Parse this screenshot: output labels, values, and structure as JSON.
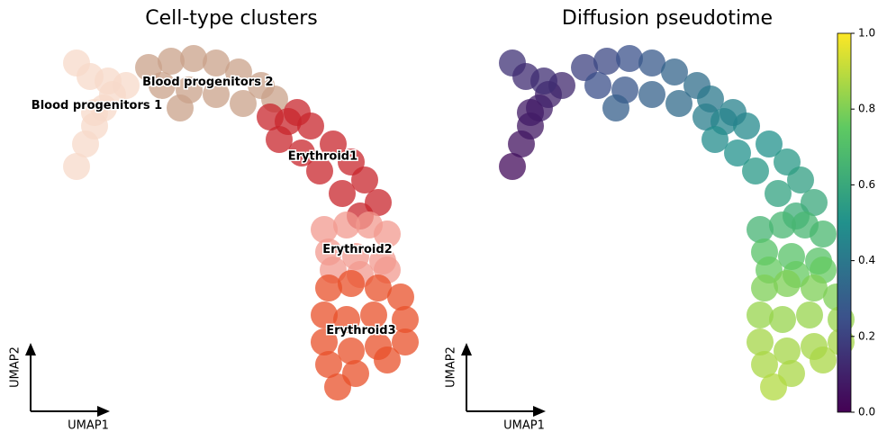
{
  "chart_data": [
    {
      "type": "scatter",
      "title": "Cell-type clusters",
      "xlabel": "UMAP1",
      "ylabel": "UMAP2",
      "xlim": [
        0,
        440
      ],
      "ylim": [
        0,
        390
      ],
      "series": [
        {
          "name": "Blood progenitors 1",
          "color": "#f7d9c9",
          "x": [
            55,
            65,
            75,
            85,
            95,
            110,
            55,
            70,
            90,
            75
          ],
          "y": [
            255,
            280,
            300,
            320,
            335,
            345,
            370,
            355,
            350,
            315
          ]
        },
        {
          "name": "Blood progenitors 2",
          "color": "#c9a28a",
          "x": [
            135,
            160,
            185,
            210,
            235,
            260,
            275,
            150,
            180,
            210,
            240,
            170
          ],
          "y": [
            365,
            372,
            375,
            370,
            360,
            345,
            330,
            345,
            340,
            335,
            325,
            320
          ]
        },
        {
          "name": "Erythroid1",
          "color": "#c8262c",
          "x": [
            270,
            290,
            315,
            340,
            360,
            375,
            390,
            280,
            305,
            325,
            350,
            370,
            300
          ],
          "y": [
            310,
            305,
            300,
            280,
            260,
            240,
            215,
            285,
            270,
            250,
            225,
            200,
            315
          ]
        },
        {
          "name": "Erythroid2",
          "color": "#f19a8f",
          "x": [
            330,
            355,
            380,
            400,
            335,
            365,
            395,
            340,
            370,
            400
          ],
          "y": [
            185,
            190,
            190,
            180,
            160,
            155,
            150,
            140,
            135,
            140
          ]
        },
        {
          "name": "Erythroid3",
          "color": "#e8502a",
          "x": [
            335,
            360,
            390,
            415,
            330,
            355,
            385,
            420,
            330,
            360,
            390,
            420,
            335,
            365,
            400,
            345
          ],
          "y": [
            120,
            125,
            120,
            110,
            90,
            85,
            90,
            85,
            60,
            50,
            55,
            60,
            35,
            25,
            40,
            10
          ]
        }
      ]
    },
    {
      "type": "scatter",
      "title": "Diffusion pseudotime",
      "xlabel": "UMAP1",
      "ylabel": "UMAP2",
      "xlim": [
        0,
        440
      ],
      "ylim": [
        0,
        390
      ],
      "colormap": "viridis",
      "clim": [
        0,
        1
      ],
      "cticks": [
        {
          "value": 0,
          "label": "0.0"
        },
        {
          "value": 0.2,
          "label": "0.2"
        },
        {
          "value": 0.4,
          "label": "0.4"
        },
        {
          "value": 0.6,
          "label": "0.6"
        },
        {
          "value": 0.8,
          "label": "0.8"
        },
        {
          "value": 1,
          "label": "1.0"
        }
      ],
      "series": [
        {
          "x": [
            55,
            65,
            75,
            85,
            95,
            110,
            55,
            70,
            90,
            75
          ],
          "y": [
            255,
            280,
            300,
            320,
            335,
            345,
            370,
            355,
            350,
            315
          ],
          "values": [
            0.03,
            0.05,
            0.07,
            0.09,
            0.1,
            0.12,
            0.15,
            0.13,
            0.14,
            0.08
          ]
        },
        {
          "x": [
            135,
            160,
            185,
            210,
            235,
            260,
            275,
            150,
            180,
            210,
            240,
            170
          ],
          "y": [
            365,
            372,
            375,
            370,
            360,
            345,
            330,
            345,
            340,
            335,
            325,
            320
          ],
          "values": [
            0.2,
            0.22,
            0.25,
            0.28,
            0.32,
            0.36,
            0.4,
            0.24,
            0.27,
            0.31,
            0.35,
            0.3
          ]
        },
        {
          "x": [
            270,
            290,
            315,
            340,
            360,
            375,
            390,
            280,
            305,
            325,
            350,
            370,
            300
          ],
          "y": [
            310,
            305,
            300,
            280,
            260,
            240,
            215,
            285,
            270,
            250,
            225,
            200,
            315
          ],
          "values": [
            0.42,
            0.45,
            0.47,
            0.5,
            0.53,
            0.56,
            0.6,
            0.48,
            0.5,
            0.53,
            0.57,
            0.62,
            0.44
          ]
        },
        {
          "x": [
            330,
            355,
            380,
            400,
            335,
            365,
            395,
            340,
            370,
            400
          ],
          "y": [
            185,
            190,
            190,
            180,
            160,
            155,
            150,
            140,
            135,
            140
          ],
          "values": [
            0.65,
            0.66,
            0.66,
            0.67,
            0.72,
            0.72,
            0.72,
            0.76,
            0.76,
            0.76
          ]
        },
        {
          "x": [
            335,
            360,
            390,
            415,
            330,
            355,
            385,
            420,
            330,
            360,
            390,
            420,
            335,
            365,
            400,
            345
          ],
          "y": [
            120,
            125,
            120,
            110,
            90,
            85,
            90,
            85,
            60,
            50,
            55,
            60,
            35,
            25,
            40,
            10
          ],
          "values": [
            0.8,
            0.8,
            0.8,
            0.8,
            0.84,
            0.84,
            0.84,
            0.84,
            0.86,
            0.86,
            0.86,
            0.86,
            0.87,
            0.87,
            0.87,
            0.88
          ]
        }
      ]
    }
  ]
}
